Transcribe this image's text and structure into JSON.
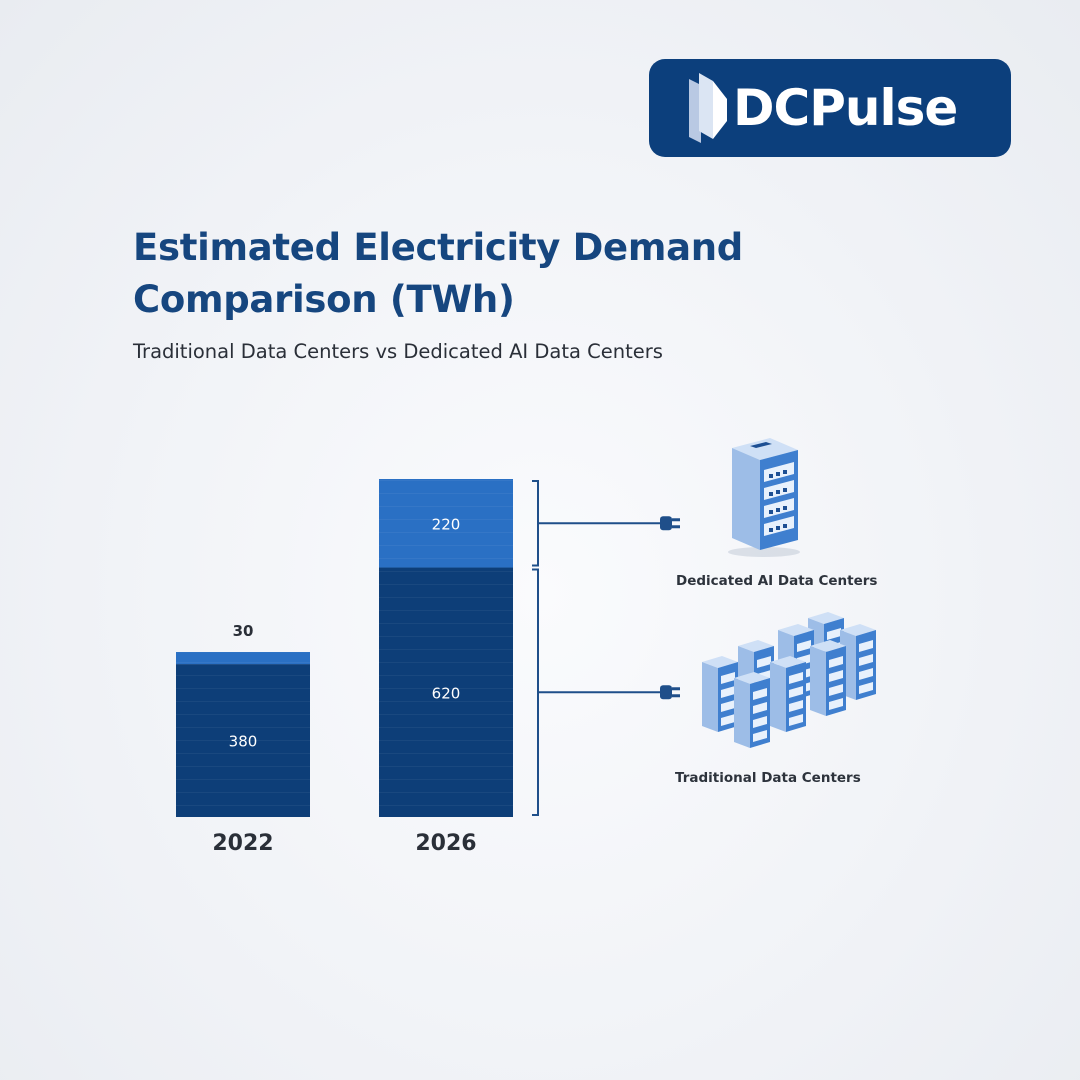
{
  "brand": {
    "logo_text": "DCPulse"
  },
  "colors": {
    "traditional": "#0d3e78",
    "ai": "#2a70c4",
    "title": "#16467f",
    "connector": "#1f4f8a"
  },
  "chart_data": {
    "type": "bar",
    "stacked": true,
    "title": "Estimated Electricity Demand Comparison (TWh)",
    "subtitle": "Traditional Data Centers vs Dedicated AI Data Centers",
    "categories": [
      "2022",
      "2026"
    ],
    "series": [
      {
        "name": "Traditional Data Centers",
        "values": [
          380,
          620
        ]
      },
      {
        "name": "Dedicated AI Data Centers",
        "values": [
          30,
          220
        ]
      }
    ],
    "xlabel": "",
    "ylabel": "",
    "ylim": [
      0,
      840
    ],
    "grid": false,
    "legend": "right",
    "legend_icons": [
      "ai-server-rack-icon",
      "traditional-server-cluster-icon"
    ]
  }
}
